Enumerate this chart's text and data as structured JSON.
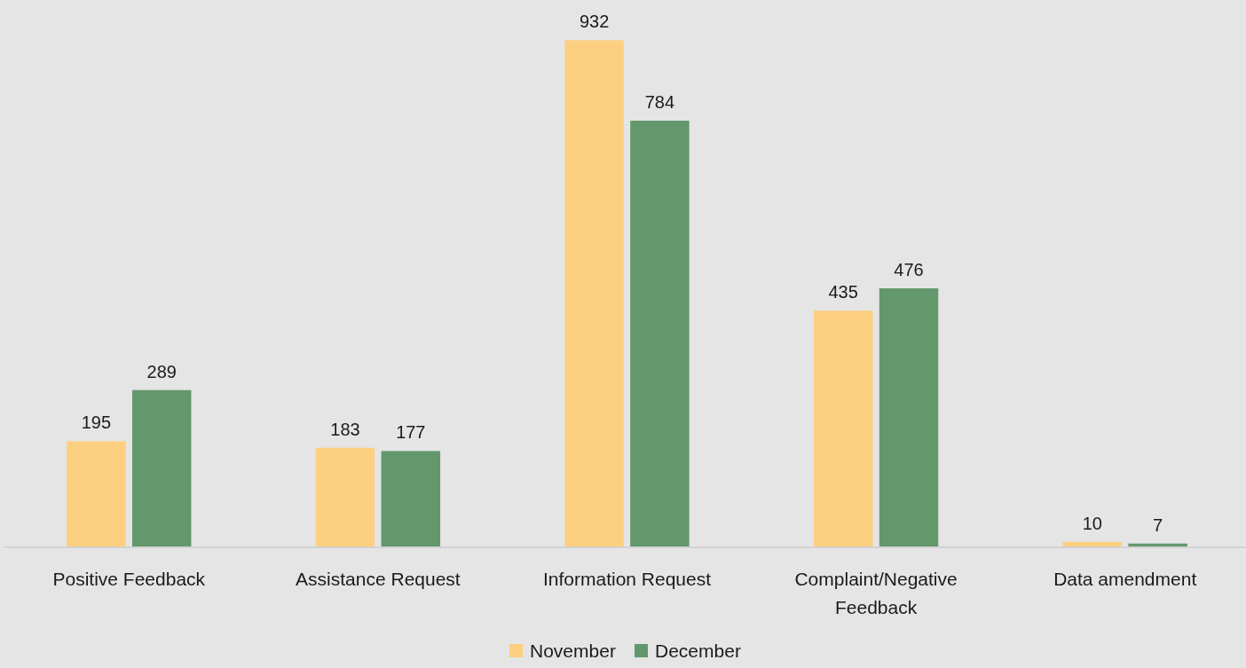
{
  "chart_data": {
    "type": "bar",
    "categories": [
      "Positive Feedback",
      "Assistance Request",
      "Information Request",
      "Complaint/Negative Feedback",
      "Data amendment"
    ],
    "series": [
      {
        "name": "November",
        "color": "#fdcf80",
        "values": [
          195,
          183,
          932,
          435,
          10
        ]
      },
      {
        "name": "December",
        "color": "#63976c",
        "values": [
          289,
          177,
          784,
          476,
          7
        ]
      }
    ],
    "data_labels": true,
    "legend": "bottom"
  }
}
